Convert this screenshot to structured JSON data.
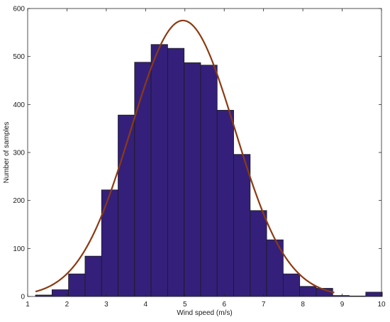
{
  "chart_data": {
    "type": "bar",
    "xlabel": "Wind speed (m/s)",
    "ylabel": "Number of samples",
    "xlim": [
      1,
      10
    ],
    "ylim": [
      0,
      600
    ],
    "xticks": [
      "1",
      "2",
      "3",
      "4",
      "5",
      "6",
      "7",
      "8",
      "9",
      "10"
    ],
    "yticks": [
      "0",
      "100",
      "200",
      "300",
      "400",
      "500",
      "600"
    ],
    "bin_edges": [
      1.2,
      1.62,
      2.04,
      2.46,
      2.88,
      3.3,
      3.72,
      4.14,
      4.56,
      4.98,
      5.4,
      5.82,
      6.24,
      6.66,
      7.08,
      7.5,
      7.92,
      8.34,
      8.76,
      9.18,
      9.6,
      10.02
    ],
    "counts": [
      3,
      14,
      47,
      84,
      222,
      378,
      488,
      525,
      517,
      487,
      482,
      388,
      296,
      179,
      118,
      47,
      21,
      17,
      2,
      1,
      9
    ],
    "fit_curve": {
      "type": "normal",
      "peak": 575,
      "mean": 4.95,
      "std": 1.32,
      "color": "#8b3a12"
    },
    "bar_color": "#34207a",
    "bar_edge_color": "#1a1a1a",
    "grid": false
  }
}
